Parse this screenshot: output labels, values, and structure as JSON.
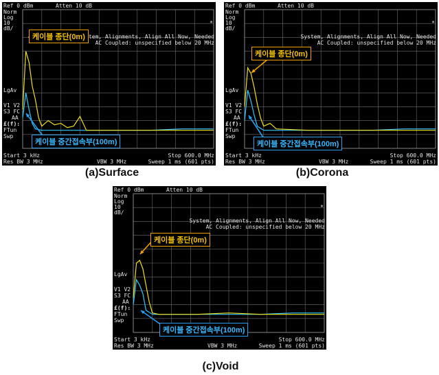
{
  "analyzer": {
    "ref": "Ref 0 dBm",
    "atten": "Atten 10 dB",
    "left_labels": [
      "Norm",
      "Log",
      "10",
      "dB/"
    ],
    "lgav": "LgAv",
    "v1v2": "V1  V2",
    "s3fc": "S3  FC",
    "aa": "AA",
    "ff": "£(f):",
    "ftun": "FTun",
    "swp": "Swp",
    "star": "*",
    "msg1": "System, Alignments, Align All Now, Needed",
    "msg2": "AC Coupled: unspecified below 20 MHz",
    "start": "Start 3 kHz",
    "stop": "Stop 600.0 MHz",
    "res_bw": "Res BW 3 MHz",
    "vbw": "VBW 3 MHz",
    "sweep": "Sweep 1 ms (601 pts)"
  },
  "annotations": {
    "cable_end": "케이블 종단(0m)",
    "cable_joint": "케이블 중간접속부(100m)"
  },
  "colors": {
    "trace_end": "#f0e020",
    "trace_joint": "#30c8ff",
    "arrow_end": "#f0a000",
    "arrow_joint": "#2aa0ef",
    "grid": "#6e6e6e",
    "background": "#000000"
  },
  "captions": {
    "a": "(a)Surface",
    "b": "(b)Corona",
    "c": "(c)Void"
  },
  "chart_data": [
    {
      "type": "line",
      "title": "(a)Surface",
      "x_range_mhz": [
        0.003,
        600.0
      ],
      "y_unit": "dB",
      "ylim": [
        -100,
        0
      ],
      "grid": true,
      "series": [
        {
          "name": "케이블 종단(0m)",
          "x": [
            0,
            10,
            20,
            30,
            40,
            50,
            60,
            80,
            100,
            120,
            140,
            160,
            180,
            200,
            300,
            400,
            500,
            600
          ],
          "y": [
            -72,
            -30,
            -38,
            -55,
            -65,
            -78,
            -84,
            -80,
            -83,
            -82,
            -85,
            -84,
            -77,
            -87,
            -87,
            -87,
            -87,
            -87
          ]
        },
        {
          "name": "케이블 중간접속부(100m)",
          "x": [
            0,
            10,
            20,
            30,
            40,
            60,
            100,
            200,
            300,
            400,
            500,
            600
          ],
          "y": [
            -78,
            -60,
            -72,
            -82,
            -86,
            -87,
            -87,
            -87,
            -87,
            -87,
            -86,
            -86
          ]
        }
      ]
    },
    {
      "type": "line",
      "title": "(b)Corona",
      "x_range_mhz": [
        0.003,
        600.0
      ],
      "y_unit": "dB",
      "ylim": [
        -100,
        0
      ],
      "grid": true,
      "series": [
        {
          "name": "케이블 종단(0m)",
          "x": [
            0,
            10,
            20,
            30,
            40,
            50,
            60,
            80,
            100,
            200,
            300,
            400,
            500,
            600
          ],
          "y": [
            -70,
            -42,
            -46,
            -56,
            -68,
            -78,
            -84,
            -82,
            -86,
            -87,
            -87,
            -87,
            -87,
            -87
          ]
        },
        {
          "name": "케이블 중간접속부(100m)",
          "x": [
            0,
            10,
            20,
            30,
            40,
            60,
            100,
            200,
            300,
            400,
            500,
            600
          ],
          "y": [
            -80,
            -58,
            -66,
            -76,
            -84,
            -87,
            -87,
            -87,
            -87,
            -87,
            -86,
            -86
          ]
        }
      ]
    },
    {
      "type": "line",
      "title": "(c)Void",
      "x_range_mhz": [
        0.003,
        600.0
      ],
      "y_unit": "dB",
      "ylim": [
        -100,
        0
      ],
      "grid": true,
      "series": [
        {
          "name": "케이블 종단(0m)",
          "x": [
            0,
            10,
            20,
            30,
            40,
            50,
            60,
            80,
            100,
            200,
            300,
            400,
            500,
            600
          ],
          "y": [
            -75,
            -50,
            -48,
            -54,
            -66,
            -78,
            -86,
            -87,
            -87,
            -87,
            -86,
            -87,
            -87,
            -87
          ]
        },
        {
          "name": "케이블 중간접속부(100m)",
          "x": [
            0,
            10,
            20,
            30,
            40,
            60,
            100,
            200,
            300,
            400,
            500,
            600
          ],
          "y": [
            -80,
            -62,
            -66,
            -72,
            -84,
            -87,
            -87,
            -87,
            -87,
            -87,
            -86,
            -86
          ]
        }
      ]
    }
  ]
}
